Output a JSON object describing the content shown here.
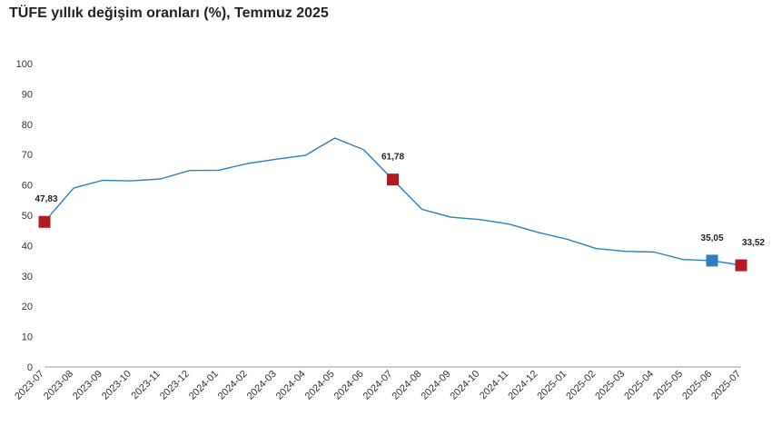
{
  "title": "TÜFE yıllık değişim oranları (%), Temmuz 2025",
  "colors": {
    "line": "#2e7fbf",
    "red_marker": "#b01c22",
    "blue_marker": "#2e7fbf",
    "axis": "#999999"
  },
  "chart_data": {
    "type": "line",
    "title": "TÜFE yıllık değişim oranları (%), Temmuz 2025",
    "xlabel": "",
    "ylabel": "",
    "ylim": [
      0,
      100
    ],
    "yticks": [
      0,
      10,
      20,
      30,
      40,
      50,
      60,
      70,
      80,
      90,
      100
    ],
    "grid": false,
    "legend": "none",
    "categories": [
      "2023-07",
      "2023-08",
      "2023-09",
      "2023-10",
      "2023-11",
      "2023-12",
      "2024-01",
      "2024-02",
      "2024-03",
      "2024-04",
      "2024-05",
      "2024-06",
      "2024-07",
      "2024-08",
      "2024-09",
      "2024-10",
      "2024-11",
      "2024-12",
      "2025-01",
      "2025-02",
      "2025-03",
      "2025-04",
      "2025-05",
      "2025-06",
      "2025-07"
    ],
    "series": [
      {
        "values": [
          47.83,
          58.94,
          61.53,
          61.36,
          61.98,
          64.77,
          64.86,
          67.07,
          68.5,
          69.8,
          75.45,
          71.6,
          61.78,
          51.97,
          49.38,
          48.58,
          47.09,
          44.38,
          42.12,
          39.05,
          38.1,
          37.86,
          35.41,
          35.05,
          33.52
        ]
      }
    ],
    "highlights": [
      {
        "index": 0,
        "label": "47,83",
        "color": "red"
      },
      {
        "index": 12,
        "label": "61,78",
        "color": "red"
      },
      {
        "index": 23,
        "label": "35,05",
        "color": "blue"
      },
      {
        "index": 24,
        "label": "33,52",
        "color": "red"
      }
    ]
  }
}
